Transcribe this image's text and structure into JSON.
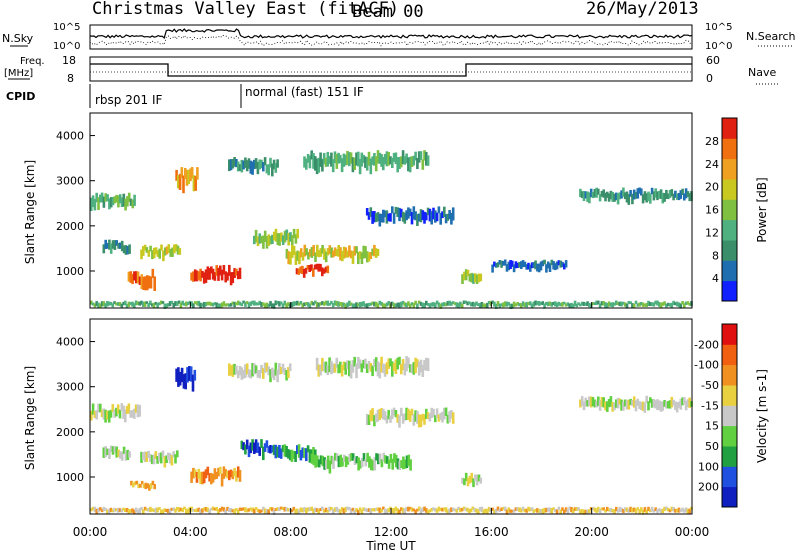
{
  "header": {
    "title": "Christmas Valley East (fitACF)",
    "beam": "Beam 00",
    "date": "26/May/2013"
  },
  "panels": {
    "nsky": {
      "label": "N.Sky",
      "tick_top": "10^5",
      "tick_bottom": "10^0",
      "right_label": "N.Search",
      "right_tick_top": "10^5",
      "right_tick_bottom": "10^0"
    },
    "freq": {
      "label_line1": "Freq.",
      "label_line2": "[MHz]",
      "tick_top": "18",
      "tick_bottom": "8",
      "right_label": "Nave",
      "right_tick_top": "60",
      "right_tick_bottom": "0"
    },
    "cpid": {
      "label": "CPID",
      "segments": [
        "rbsp 201 IF",
        "normal (fast) 151 IF"
      ]
    }
  },
  "chart_data": [
    {
      "type": "heatmap",
      "quantity": "Power",
      "ylabel": "Slant Range [km]",
      "ylim": [
        180,
        4500
      ],
      "yticks": [
        "1000",
        "2000",
        "3000",
        "4000"
      ],
      "colorbar_label": "Power [dB]",
      "colorbar_ticks": [
        "4",
        "8",
        "12",
        "16",
        "20",
        "24",
        "28"
      ],
      "colorbar_colors": [
        "#1020ff",
        "#1f6fb0",
        "#3a8f6a",
        "#4fb080",
        "#7fc040",
        "#c8c820",
        "#f0a020",
        "#f07010",
        "#e02010"
      ],
      "range_bands": [
        {
          "t0": 0.0,
          "t1": 1.8,
          "r": 2500,
          "w": 300,
          "level": 3
        },
        {
          "t0": 0.5,
          "t1": 1.6,
          "r": 1500,
          "w": 250,
          "level": 2
        },
        {
          "t0": 1.5,
          "t1": 2.6,
          "r": 800,
          "w": 350,
          "level": 7
        },
        {
          "t0": 2.0,
          "t1": 3.6,
          "r": 1400,
          "w": 250,
          "level": 5
        },
        {
          "t0": 3.4,
          "t1": 4.3,
          "r": 3000,
          "w": 400,
          "level": 6
        },
        {
          "t0": 4.0,
          "t1": 6.0,
          "r": 900,
          "w": 300,
          "level": 8
        },
        {
          "t0": 5.5,
          "t1": 7.5,
          "r": 3300,
          "w": 300,
          "level": 2
        },
        {
          "t0": 6.5,
          "t1": 8.3,
          "r": 1700,
          "w": 300,
          "level": 4
        },
        {
          "t0": 7.8,
          "t1": 11.5,
          "r": 1350,
          "w": 300,
          "level": 5
        },
        {
          "t0": 8.2,
          "t1": 9.5,
          "r": 1000,
          "w": 200,
          "level": 8
        },
        {
          "t0": 8.5,
          "t1": 13.5,
          "r": 3400,
          "w": 350,
          "level": 3
        },
        {
          "t0": 11.0,
          "t1": 14.5,
          "r": 2200,
          "w": 300,
          "level": 1
        },
        {
          "t0": 14.8,
          "t1": 15.6,
          "r": 850,
          "w": 250,
          "level": 4
        },
        {
          "t0": 16.0,
          "t1": 19.0,
          "r": 1100,
          "w": 200,
          "level": 1
        },
        {
          "t0": 19.5,
          "t1": 24.0,
          "r": 2650,
          "w": 250,
          "level": 2
        },
        {
          "t0": 0.0,
          "t1": 24.0,
          "r": 250,
          "w": 120,
          "level": 3
        }
      ]
    },
    {
      "type": "heatmap",
      "quantity": "Velocity",
      "ylabel": "Slant Range [km]",
      "ylim": [
        180,
        4500
      ],
      "yticks": [
        "1000",
        "2000",
        "3000",
        "4000"
      ],
      "colorbar_label": "Velocity [m s-1]",
      "colorbar_ticks": [
        "200",
        "100",
        "50",
        "15",
        "-15",
        "-50",
        "-100",
        "-200"
      ],
      "colorbar_colors": [
        "#1020c0",
        "#2050e0",
        "#20a040",
        "#60d040",
        "#c8c8c8",
        "#e8d040",
        "#f09020",
        "#f06010",
        "#e01010"
      ],
      "range_bands": [
        {
          "t0": 0.0,
          "t1": 2.0,
          "r": 2400,
          "w": 300,
          "level": 4
        },
        {
          "t0": 0.5,
          "t1": 1.6,
          "r": 1500,
          "w": 250,
          "level": 4
        },
        {
          "t0": 1.6,
          "t1": 2.6,
          "r": 800,
          "w": 150,
          "level": 6
        },
        {
          "t0": 2.0,
          "t1": 3.5,
          "r": 1400,
          "w": 250,
          "level": 4
        },
        {
          "t0": 3.4,
          "t1": 4.2,
          "r": 3100,
          "w": 450,
          "level": 0
        },
        {
          "t0": 4.0,
          "t1": 6.0,
          "r": 1000,
          "w": 300,
          "level": 6
        },
        {
          "t0": 6.0,
          "t1": 7.5,
          "r": 1600,
          "w": 300,
          "level": 1
        },
        {
          "t0": 5.5,
          "t1": 8.0,
          "r": 3300,
          "w": 300,
          "level": 4
        },
        {
          "t0": 7.5,
          "t1": 9.0,
          "r": 1500,
          "w": 300,
          "level": 2
        },
        {
          "t0": 8.8,
          "t1": 12.8,
          "r": 1300,
          "w": 300,
          "level": 3
        },
        {
          "t0": 9.0,
          "t1": 13.5,
          "r": 3400,
          "w": 350,
          "level": 4
        },
        {
          "t0": 11.0,
          "t1": 14.5,
          "r": 2300,
          "w": 300,
          "level": 4
        },
        {
          "t0": 14.8,
          "t1": 15.6,
          "r": 900,
          "w": 250,
          "level": 4
        },
        {
          "t0": 19.5,
          "t1": 24.0,
          "r": 2600,
          "w": 250,
          "level": 4
        },
        {
          "t0": 0.0,
          "t1": 24.0,
          "r": 250,
          "w": 120,
          "level": 5
        }
      ]
    }
  ],
  "xaxis": {
    "label": "Time UT",
    "xlim": [
      0,
      24
    ],
    "ticks": [
      "00:00",
      "04:00",
      "08:00",
      "12:00",
      "16:00",
      "20:00",
      "00:00"
    ]
  }
}
